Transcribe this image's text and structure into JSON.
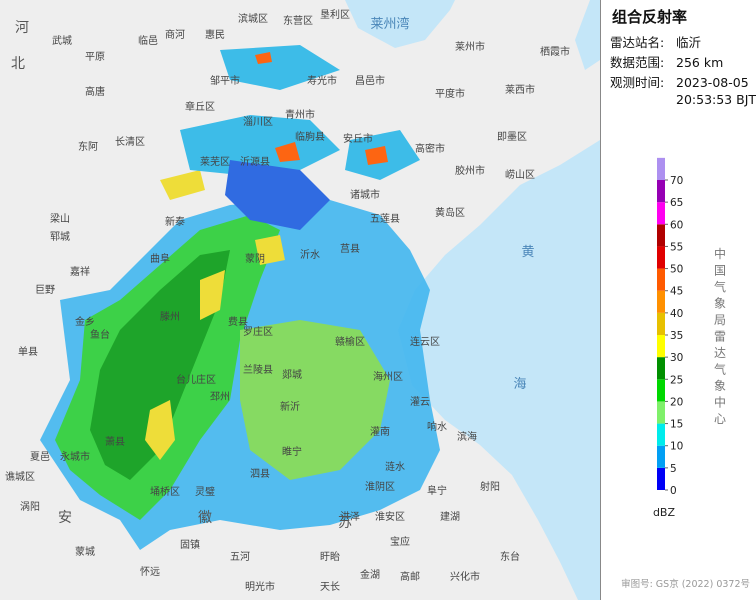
{
  "panel": {
    "title": "组合反射率",
    "station_label": "雷达站名:",
    "station": "临沂",
    "range_label": "数据范围:",
    "range": "256 km",
    "time_label": "观测时间:",
    "date": "2023-08-05",
    "time": "20:53:53 BJT"
  },
  "legend": {
    "ticks": [
      0,
      5,
      10,
      15,
      20,
      25,
      30,
      35,
      40,
      45,
      50,
      55,
      60,
      65,
      70
    ],
    "colors": [
      "#0000f6",
      "#019ff4",
      "#00ecec",
      "#7ff06a",
      "#00d800",
      "#019000",
      "#ffff00",
      "#e7c000",
      "#ff9000",
      "#ff5a00",
      "#e00000",
      "#b00000",
      "#ff00f0",
      "#9600b4",
      "#ad90f0"
    ],
    "unit": "dBZ",
    "caption": "中国气象局雷达气象中心"
  },
  "map": {
    "labels": [
      "河",
      "北",
      "武城",
      "平原",
      "临邑",
      "商河",
      "惠民",
      "滨城区",
      "东营区",
      "垦利区",
      "莱州湾",
      "莱州市",
      "栖霞市",
      "寿光市",
      "昌邑市",
      "平度市",
      "莱西市",
      "邹平市",
      "淄川区",
      "青州市",
      "章丘区",
      "长清区",
      "高唐",
      "东阿",
      "莱芜区",
      "沂源县",
      "临朐县",
      "安丘市",
      "高密市",
      "胶州市",
      "即墨区",
      "崂山区",
      "黄岛区",
      "诸城市",
      "五莲县",
      "莒县",
      "沂水",
      "蒙阴",
      "新泰",
      "曲阜",
      "嘉祥",
      "巨野",
      "郓城",
      "梁山",
      "单县",
      "金乡",
      "鱼台",
      "滕州",
      "费县",
      "罗庄区",
      "兰陵县",
      "台儿庄区",
      "郯城",
      "赣榆区",
      "海州区",
      "连云区",
      "灌云",
      "灌南",
      "响水",
      "滨海",
      "阜宁",
      "射阳",
      "涟水",
      "淮阴区",
      "淮安区",
      "建湖",
      "宝应",
      "洪泽",
      "盱眙",
      "泗县",
      "灵璧",
      "埇桥区",
      "萧县",
      "永城市",
      "夏邑",
      "谯城区",
      "涡阳",
      "安",
      "徽",
      "蒙城",
      "怀远",
      "固镇",
      "五河",
      "明光市",
      "天长",
      "金湖",
      "高邮",
      "兴化市",
      "东台",
      "黄",
      "海",
      "苏",
      "睢宁",
      "新沂",
      "邳州"
    ]
  },
  "credit": "审图号: GS京 (2022) 0372号"
}
